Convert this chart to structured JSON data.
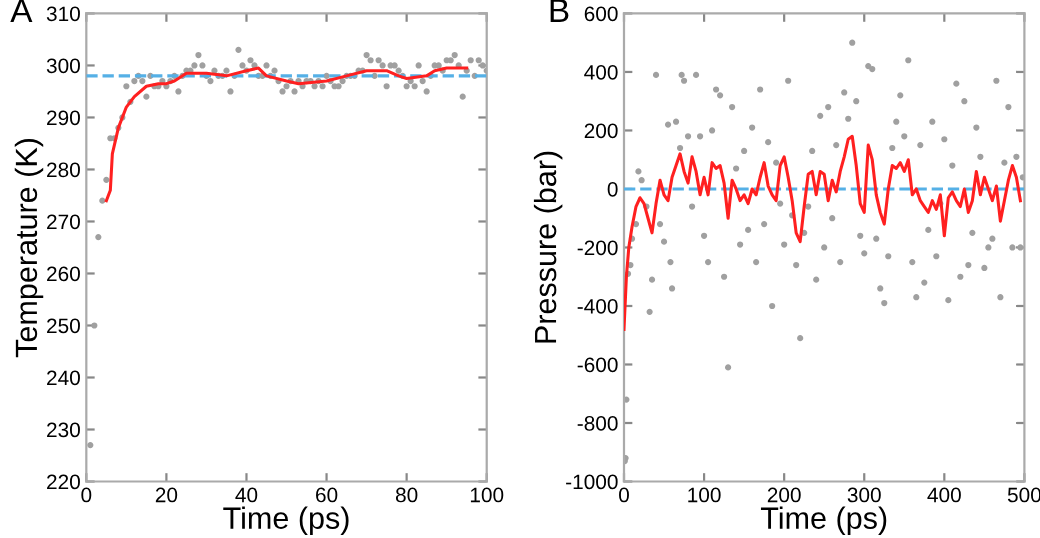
{
  "chart_data": [
    {
      "type": "scatter",
      "annotations": [
        "A"
      ],
      "xlabel": "Time (ps)",
      "ylabel": "Temperature (K)",
      "xlim": [
        0,
        100
      ],
      "ylim": [
        220,
        310
      ],
      "xticks": [
        0,
        20,
        40,
        60,
        80,
        100
      ],
      "yticks": [
        220,
        230,
        240,
        250,
        260,
        270,
        280,
        290,
        300,
        310
      ],
      "grid": false,
      "legend": false,
      "ref_lines": [
        {
          "axis": "y",
          "value": 298,
          "color": "#55b0e6",
          "line_style": "dashed"
        }
      ],
      "series": [
        {
          "color": "#a0a0a0",
          "x": [
            1,
            2,
            3,
            4,
            5,
            6,
            7,
            8,
            9,
            10,
            11,
            12,
            13,
            14,
            15,
            16,
            17,
            18,
            19,
            20,
            21,
            22,
            23,
            24,
            25,
            26,
            27,
            28,
            29,
            30,
            31,
            32,
            33,
            34,
            35,
            36,
            37,
            38,
            39,
            40,
            41,
            42,
            43,
            44,
            45,
            46,
            47,
            48,
            49,
            50,
            51,
            52,
            53,
            54,
            55,
            56,
            57,
            58,
            59,
            60,
            61,
            62,
            63,
            64,
            65,
            66,
            67,
            68,
            69,
            70,
            71,
            72,
            73,
            74,
            75,
            76,
            77,
            78,
            79,
            80,
            81,
            82,
            83,
            84,
            85,
            86,
            87,
            88,
            89,
            90,
            91,
            92,
            93,
            94,
            95,
            96,
            97,
            98,
            99,
            100
          ],
          "values": [
            227,
            250,
            267,
            274,
            278,
            286,
            286,
            288,
            290,
            296,
            293,
            297,
            298,
            297,
            294,
            298,
            296,
            296,
            297,
            296,
            297,
            298,
            295,
            298,
            299,
            299,
            300,
            302,
            300,
            298,
            297,
            299,
            298,
            298,
            299,
            295,
            298,
            303,
            300,
            299,
            301,
            300,
            298,
            298,
            300,
            298,
            299,
            297,
            295,
            296,
            297,
            295,
            297,
            296,
            297,
            297,
            296,
            297,
            296,
            298,
            297,
            296,
            296,
            297,
            298,
            298,
            298,
            299,
            299,
            302,
            301,
            298,
            301,
            300,
            296,
            300,
            300,
            299,
            298,
            296,
            297,
            296,
            300,
            297,
            295,
            298,
            300,
            300,
            299,
            301,
            301,
            302,
            300,
            294,
            299,
            301,
            298,
            301,
            300,
            299
          ]
        },
        {
          "type": "line",
          "color": "#ff2020",
          "x": [
            5,
            6,
            6.5,
            8,
            10,
            12,
            15,
            18,
            20,
            22,
            25,
            30,
            35,
            40,
            43,
            45,
            50,
            53,
            60,
            65,
            70,
            75,
            78,
            80,
            85,
            87,
            90,
            95
          ],
          "values": [
            274,
            276,
            283,
            288,
            292,
            294,
            296,
            296.5,
            296.5,
            297,
            298.5,
            298.5,
            298,
            299,
            299.5,
            298,
            297,
            296.5,
            297,
            298,
            299,
            299,
            298,
            297.5,
            298,
            299,
            299.5,
            299.5
          ]
        }
      ]
    },
    {
      "type": "scatter",
      "annotations": [
        "B"
      ],
      "xlabel": "Time (ps)",
      "ylabel": "Pressure (bar)",
      "xlim": [
        0,
        500
      ],
      "ylim": [
        -1000,
        600
      ],
      "xticks": [
        0,
        100,
        200,
        300,
        400,
        500
      ],
      "yticks": [
        -1000,
        -800,
        -600,
        -400,
        -200,
        0,
        200,
        400,
        600
      ],
      "grid": false,
      "legend": false,
      "ref_lines": [
        {
          "axis": "y",
          "value": 0,
          "color": "#55b0e6",
          "line_style": "dashed"
        }
      ],
      "series": [
        {
          "color": "#a0a0a0",
          "x": [
            1,
            2,
            3,
            5,
            8,
            10,
            15,
            18,
            22,
            28,
            32,
            35,
            40,
            45,
            50,
            55,
            58,
            60,
            65,
            70,
            72,
            75,
            80,
            85,
            90,
            95,
            100,
            105,
            110,
            115,
            120,
            125,
            130,
            135,
            140,
            145,
            150,
            155,
            160,
            165,
            170,
            175,
            180,
            185,
            190,
            195,
            200,
            205,
            210,
            215,
            220,
            225,
            230,
            235,
            240,
            245,
            250,
            255,
            260,
            265,
            270,
            275,
            280,
            285,
            290,
            295,
            300,
            305,
            310,
            315,
            320,
            325,
            330,
            335,
            340,
            345,
            350,
            355,
            360,
            365,
            370,
            375,
            380,
            385,
            390,
            395,
            400,
            405,
            410,
            415,
            420,
            425,
            430,
            435,
            440,
            445,
            450,
            455,
            460,
            465,
            470,
            475,
            480,
            485,
            490,
            495,
            498
          ],
          "values": [
            -930,
            -920,
            -720,
            -290,
            -260,
            -170,
            -120,
            60,
            30,
            -60,
            -420,
            -310,
            390,
            -120,
            -180,
            220,
            -250,
            -340,
            230,
            140,
            390,
            370,
            180,
            -60,
            390,
            180,
            -160,
            -250,
            200,
            340,
            320,
            -300,
            -610,
            280,
            70,
            -190,
            130,
            -140,
            210,
            -250,
            340,
            -120,
            160,
            -400,
            90,
            -50,
            -190,
            370,
            -90,
            -260,
            -510,
            -150,
            -60,
            130,
            -310,
            250,
            -200,
            280,
            -100,
            150,
            -250,
            330,
            240,
            500,
            300,
            -160,
            -220,
            420,
            410,
            -170,
            -340,
            -390,
            -230,
            140,
            230,
            320,
            180,
            440,
            -250,
            -370,
            150,
            -320,
            -140,
            230,
            -230,
            -50,
            170,
            -380,
            80,
            360,
            -300,
            300,
            -260,
            -150,
            210,
            110,
            -270,
            -200,
            -170,
            370,
            -370,
            90,
            280,
            -200,
            110,
            -200,
            40
          ]
        },
        {
          "type": "line",
          "color": "#ff2020",
          "x": [
            0,
            3,
            6,
            10,
            15,
            20,
            25,
            30,
            35,
            40,
            45,
            50,
            55,
            60,
            65,
            70,
            75,
            80,
            85,
            90,
            95,
            100,
            105,
            110,
            115,
            120,
            125,
            130,
            135,
            140,
            145,
            150,
            155,
            160,
            165,
            170,
            175,
            180,
            185,
            190,
            195,
            200,
            205,
            210,
            215,
            220,
            225,
            230,
            235,
            240,
            245,
            250,
            255,
            260,
            265,
            270,
            275,
            280,
            285,
            290,
            295,
            300,
            305,
            310,
            315,
            320,
            325,
            330,
            335,
            340,
            345,
            350,
            355,
            360,
            365,
            370,
            375,
            380,
            385,
            390,
            395,
            400,
            405,
            410,
            415,
            420,
            425,
            430,
            435,
            440,
            445,
            450,
            455,
            460,
            465,
            470,
            475,
            480,
            485,
            490,
            495
          ],
          "values": [
            -480,
            -300,
            -200,
            -130,
            -60,
            -30,
            -50,
            -100,
            -150,
            -50,
            30,
            -20,
            -40,
            40,
            80,
            120,
            60,
            20,
            110,
            60,
            -20,
            40,
            -20,
            90,
            70,
            80,
            20,
            -100,
            30,
            0,
            -40,
            -20,
            -50,
            0,
            -20,
            40,
            90,
            10,
            -20,
            -40,
            80,
            110,
            40,
            -40,
            -150,
            -180,
            -60,
            50,
            60,
            -20,
            60,
            50,
            -40,
            30,
            -10,
            60,
            110,
            170,
            180,
            80,
            -50,
            -80,
            150,
            100,
            -20,
            -80,
            -120,
            0,
            80,
            70,
            90,
            60,
            100,
            -20,
            0,
            -40,
            -60,
            -80,
            -40,
            -70,
            -20,
            -160,
            -30,
            -10,
            -40,
            -60,
            0,
            -80,
            -40,
            60,
            -20,
            40,
            0,
            -40,
            10,
            -110,
            -40,
            30,
            80,
            40,
            -40
          ]
        }
      ]
    }
  ]
}
